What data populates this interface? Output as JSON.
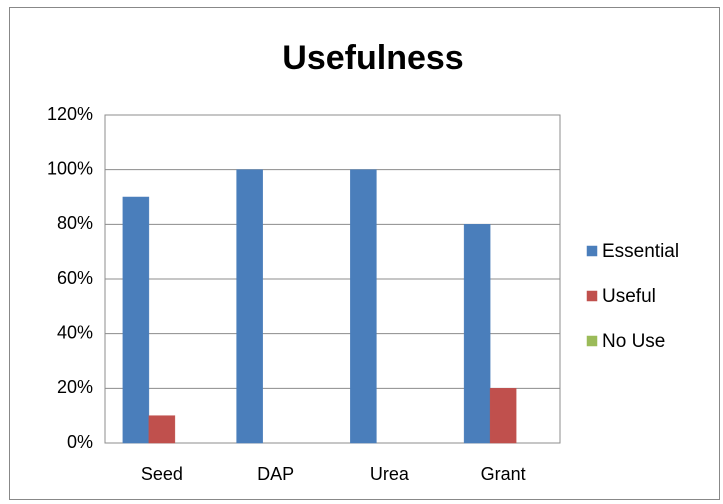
{
  "chart_data": {
    "type": "bar",
    "title": "Usefulness",
    "categories": [
      "Seed",
      "DAP",
      "Urea",
      "Grant"
    ],
    "series": [
      {
        "name": "Essential",
        "color": "#4a7ebb",
        "values": [
          90,
          100,
          100,
          80
        ]
      },
      {
        "name": "Useful",
        "color": "#c0504d",
        "values": [
          10,
          0,
          0,
          20
        ]
      },
      {
        "name": "No Use",
        "color": "#9bbb59",
        "values": [
          0,
          0,
          0,
          0
        ]
      }
    ],
    "ylim": [
      0,
      120
    ],
    "yticks": [
      {
        "value": 0,
        "label": "0%"
      },
      {
        "value": 20,
        "label": "20%"
      },
      {
        "value": 40,
        "label": "40%"
      },
      {
        "value": 60,
        "label": "60%"
      },
      {
        "value": 80,
        "label": "80%"
      },
      {
        "value": 100,
        "label": "100%"
      },
      {
        "value": 120,
        "label": "120%"
      }
    ],
    "grid": true,
    "legend": "right"
  }
}
